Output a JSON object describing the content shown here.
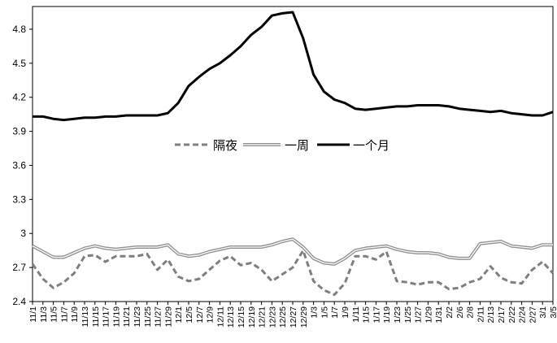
{
  "chart_data": {
    "type": "line",
    "title": "",
    "xlabel": "",
    "ylabel": "",
    "ylim": [
      2.4,
      5.0
    ],
    "yticks": [
      "2.4",
      "2.7",
      "3",
      "3.3",
      "3.6",
      "3.9",
      "4.2",
      "4.5",
      "4.8"
    ],
    "grid": false,
    "legend_position": "center",
    "x": [
      "11/1",
      "11/3",
      "11/5",
      "11/7",
      "11/9",
      "11/13",
      "11/15",
      "11/17",
      "11/19",
      "11/21",
      "11/23",
      "11/25",
      "11/27",
      "11/29",
      "12/1",
      "12/5",
      "12/7",
      "12/9",
      "12/11",
      "12/13",
      "12/15",
      "12/19",
      "12/21",
      "12/23",
      "12/25",
      "12/27",
      "12/29",
      "1/3",
      "1/5",
      "1/7",
      "1/9",
      "1/11",
      "1/15",
      "1/17",
      "1/19",
      "1/23",
      "1/25",
      "1/27",
      "1/29",
      "1/31",
      "2/2",
      "2/6",
      "2/8",
      "2/11",
      "2/13",
      "2/17",
      "2/22",
      "2/24",
      "2/27",
      "3/1",
      "3/5"
    ],
    "series": [
      {
        "name": "隔夜",
        "style": "dashed",
        "color": "#7f7f7f",
        "values": [
          2.73,
          2.6,
          2.52,
          2.57,
          2.65,
          2.8,
          2.81,
          2.75,
          2.8,
          2.8,
          2.8,
          2.82,
          2.68,
          2.77,
          2.62,
          2.58,
          2.6,
          2.68,
          2.76,
          2.8,
          2.72,
          2.74,
          2.68,
          2.58,
          2.64,
          2.7,
          2.85,
          2.58,
          2.5,
          2.46,
          2.56,
          2.8,
          2.8,
          2.77,
          2.84,
          2.58,
          2.57,
          2.55,
          2.57,
          2.57,
          2.51,
          2.52,
          2.57,
          2.6,
          2.71,
          2.61,
          2.57,
          2.56,
          2.68,
          2.75,
          2.65
        ]
      },
      {
        "name": "一周",
        "style": "double",
        "color": "#909090",
        "values": [
          2.89,
          2.84,
          2.79,
          2.79,
          2.83,
          2.87,
          2.89,
          2.87,
          2.86,
          2.87,
          2.88,
          2.88,
          2.88,
          2.9,
          2.82,
          2.8,
          2.81,
          2.84,
          2.86,
          2.88,
          2.88,
          2.88,
          2.88,
          2.9,
          2.93,
          2.95,
          2.88,
          2.78,
          2.74,
          2.73,
          2.78,
          2.85,
          2.87,
          2.88,
          2.89,
          2.86,
          2.84,
          2.83,
          2.83,
          2.82,
          2.79,
          2.78,
          2.78,
          2.91,
          2.92,
          2.93,
          2.89,
          2.88,
          2.87,
          2.9,
          2.9
        ]
      },
      {
        "name": "一个月",
        "style": "solid",
        "color": "#000000",
        "values": [
          4.03,
          4.03,
          4.01,
          4.0,
          4.01,
          4.02,
          4.02,
          4.03,
          4.03,
          4.04,
          4.04,
          4.04,
          4.04,
          4.06,
          4.15,
          4.3,
          4.38,
          4.45,
          4.5,
          4.57,
          4.65,
          4.75,
          4.82,
          4.92,
          4.94,
          4.95,
          4.72,
          4.4,
          4.25,
          4.18,
          4.15,
          4.1,
          4.09,
          4.1,
          4.11,
          4.12,
          4.12,
          4.13,
          4.13,
          4.13,
          4.12,
          4.1,
          4.09,
          4.08,
          4.07,
          4.08,
          4.06,
          4.05,
          4.04,
          4.04,
          4.07
        ]
      }
    ]
  }
}
